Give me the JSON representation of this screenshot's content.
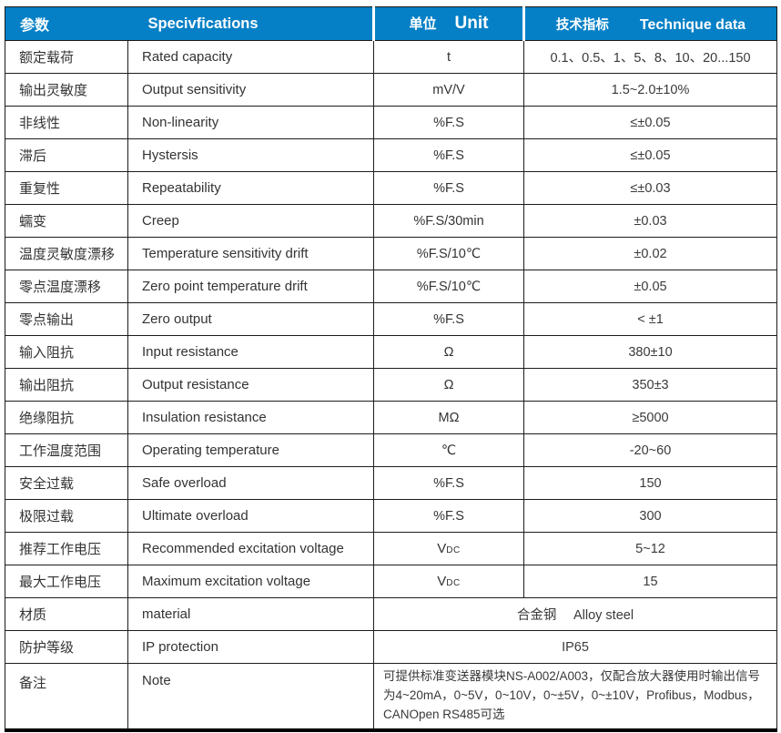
{
  "colors": {
    "header_bg": "#0580c6",
    "header_text": "#ffffff",
    "body_text": "#333333",
    "border": "#1c1c1c"
  },
  "header": {
    "param_cn": "参数",
    "spec_en": "Specivfications",
    "unit_cn": "单位",
    "unit_en": "Unit",
    "data_cn": "技术指标",
    "data_en": "Technique data"
  },
  "rows": [
    {
      "cn": "额定载荷",
      "en": "Rated capacity",
      "unit": "t",
      "value": "0.1、0.5、1、5、8、10、20...150"
    },
    {
      "cn": "输出灵敏度",
      "en": "Output sensitivity",
      "unit": "mV/V",
      "value": "1.5~2.0±10%"
    },
    {
      "cn": "非线性",
      "en": "Non-linearity",
      "unit": "%F.S",
      "value": "≤±0.05"
    },
    {
      "cn": "滞后",
      "en": "Hystersis",
      "unit": "%F.S",
      "value": "≤±0.05"
    },
    {
      "cn": "重复性",
      "en": "Repeatability",
      "unit": "%F.S",
      "value": "≤±0.03"
    },
    {
      "cn": "蠕变",
      "en": "Creep",
      "unit": "%F.S/30min",
      "value": "±0.03"
    },
    {
      "cn": "温度灵敏度漂移",
      "en": "Temperature sensitivity drift",
      "unit": "%F.S/10℃",
      "value": "±0.02"
    },
    {
      "cn": "零点温度漂移",
      "en": "Zero point temperature drift",
      "unit": "%F.S/10℃",
      "value": "±0.05"
    },
    {
      "cn": "零点输出",
      "en": "Zero output",
      "unit": "%F.S",
      "value": "< ±1"
    },
    {
      "cn": "输入阻抗",
      "en": "Input resistance",
      "unit": "Ω",
      "value": "380±10"
    },
    {
      "cn": "输出阻抗",
      "en": "Output resistance",
      "unit": "Ω",
      "value": "350±3"
    },
    {
      "cn": "绝缘阻抗",
      "en": "Insulation resistance",
      "unit": "MΩ",
      "value": "≥5000"
    },
    {
      "cn": "工作温度范围",
      "en": "Operating temperature",
      "unit": "℃",
      "value": "-20~60"
    },
    {
      "cn": "安全过载",
      "en": "Safe overload",
      "unit": "%F.S",
      "value": "150"
    },
    {
      "cn": "极限过载",
      "en": "Ultimate overload",
      "unit": "%F.S",
      "value": "300"
    },
    {
      "cn": "推荐工作电压",
      "en": "Recommended excitation voltage",
      "unit_main": "V",
      "unit_sub": "DC",
      "value": "5~12"
    },
    {
      "cn": "最大工作电压",
      "en": "Maximum excitation voltage",
      "unit_main": "V",
      "unit_sub": "DC",
      "value": "15"
    }
  ],
  "merged_rows": [
    {
      "cn": "材质",
      "en": "material",
      "value": "合金钢　 Alloy steel",
      "align": "center"
    },
    {
      "cn": "防护等级",
      "en": "IP protection",
      "value": "IP65",
      "align": "center"
    },
    {
      "cn": "备注",
      "en": "Note",
      "value": "可提供标准变送器模块NS-A002/A003，仅配合放大器使用时输出信号为4~20mA，0~5V，0~10V，0~±5V，0~±10V，Profibus，Modbus，CANOpen RS485可选",
      "align": "left",
      "tall": true
    }
  ]
}
